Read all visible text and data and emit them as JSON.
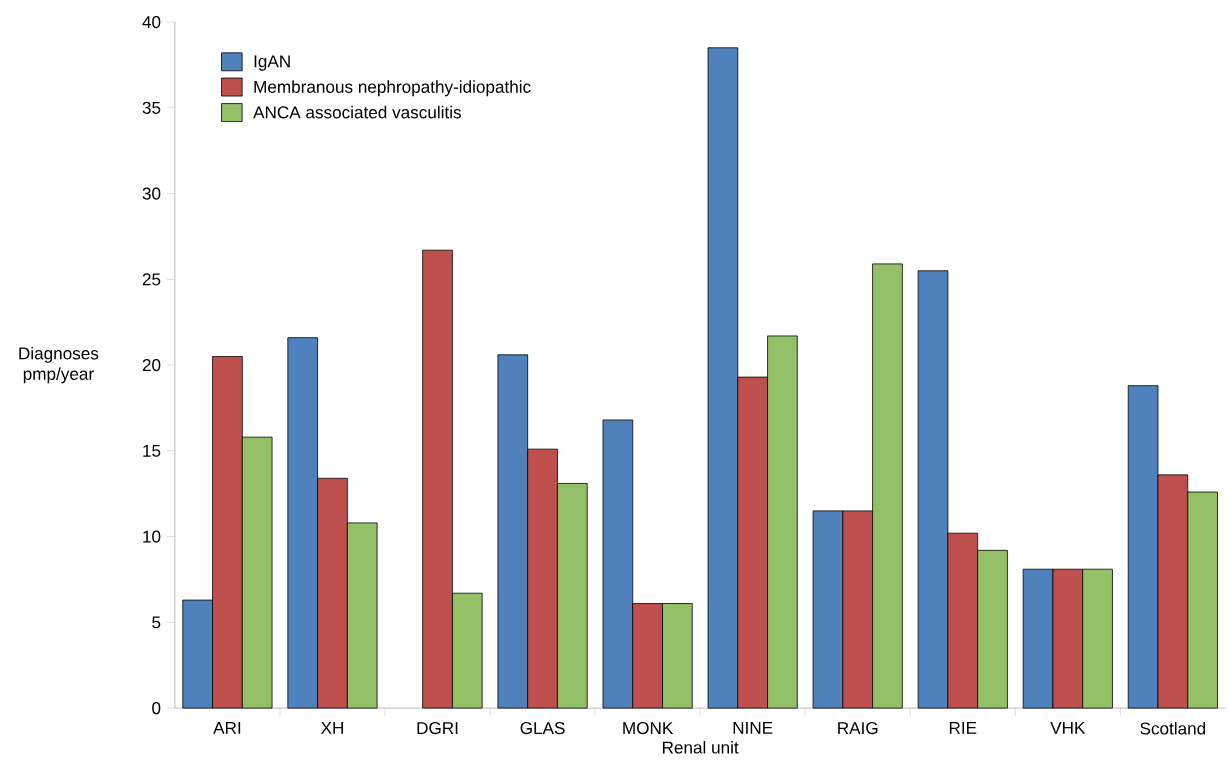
{
  "chart_data": {
    "type": "bar",
    "xlabel": "Renal unit",
    "ylabel": "Diagnoses pmp/year",
    "categories": [
      "ARI",
      "XH",
      "DGRI",
      "GLAS",
      "MONK",
      "NINE",
      "RAIG",
      "RIE",
      "VHK",
      "Scotland"
    ],
    "series": [
      {
        "name": "IgAN",
        "color": "#4f81bd",
        "values": [
          6.3,
          21.6,
          null,
          20.6,
          16.8,
          38.5,
          11.5,
          25.5,
          8.1,
          18.8
        ]
      },
      {
        "name": "Membranous nephropathy-idiopathic",
        "color": "#c0504d",
        "values": [
          20.5,
          13.4,
          26.7,
          15.1,
          6.1,
          19.3,
          11.5,
          10.2,
          8.1,
          13.6
        ]
      },
      {
        "name": "ANCA associated vasculitis",
        "color": "#93bf67",
        "values": [
          15.8,
          10.8,
          6.7,
          13.1,
          6.1,
          21.7,
          25.9,
          9.2,
          8.1,
          12.6
        ]
      }
    ],
    "ylim": [
      0,
      40
    ],
    "yticks": [
      0,
      5,
      10,
      15,
      20,
      25,
      30,
      35,
      40
    ],
    "legend": "top left"
  }
}
